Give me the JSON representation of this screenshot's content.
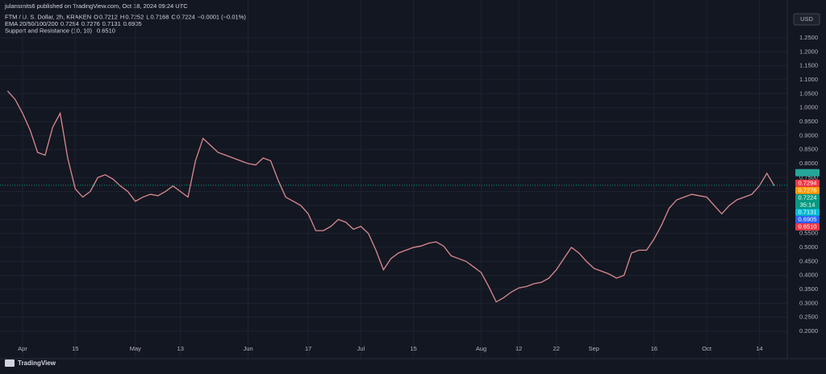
{
  "header": {
    "publisher": "julansmits6 published on TradingView.com, Oct 18, 2024 09:24 UTC",
    "symbol": "FTM / U. S. Dollar, 2h, KRAKEN",
    "ohlc": [
      [
        "O",
        "0.7212"
      ],
      [
        "H",
        "0.7252"
      ],
      [
        "L",
        "0.7168"
      ],
      [
        "C",
        "0.7224"
      ]
    ],
    "change": "−0.0001 (−0.01%)",
    "ema_label": "EMA 20/50/100/200",
    "sr_label": "Support and Resistance (10, 10)",
    "currency": "USD",
    "brand": "TradingView"
  },
  "chart_data": {
    "type": "line",
    "color": "#d98a8f",
    "categories": [
      null,
      null,
      "Apr",
      null,
      null,
      null,
      null,
      null,
      null,
      "15",
      null,
      null,
      null,
      null,
      null,
      null,
      null,
      "May",
      null,
      null,
      null,
      null,
      null,
      "13",
      null,
      null,
      null,
      null,
      null,
      null,
      null,
      null,
      "Jun",
      null,
      null,
      null,
      null,
      null,
      null,
      null,
      "17",
      null,
      null,
      null,
      null,
      null,
      null,
      "Jul",
      null,
      null,
      null,
      null,
      null,
      null,
      "15",
      null,
      null,
      null,
      null,
      null,
      null,
      null,
      null,
      "Aug",
      null,
      null,
      null,
      null,
      "12",
      null,
      null,
      null,
      null,
      "22",
      null,
      null,
      null,
      null,
      "Sep",
      null,
      null,
      null,
      null,
      null,
      null,
      null,
      "16",
      null,
      null,
      null,
      null,
      null,
      null,
      "Oct",
      null,
      null,
      null,
      null,
      null,
      null,
      "14",
      null,
      null
    ],
    "values": [
      1.06,
      1.03,
      0.98,
      0.92,
      0.84,
      0.83,
      0.93,
      0.98,
      0.82,
      0.71,
      0.68,
      0.7,
      0.75,
      0.76,
      0.745,
      0.72,
      0.7,
      0.665,
      0.68,
      0.69,
      0.685,
      0.7,
      0.72,
      0.7,
      0.68,
      0.81,
      0.89,
      0.865,
      0.84,
      0.83,
      0.82,
      0.81,
      0.8,
      0.795,
      0.82,
      0.81,
      0.74,
      0.68,
      0.665,
      0.65,
      0.62,
      0.56,
      0.56,
      0.575,
      0.6,
      0.59,
      0.565,
      0.575,
      0.55,
      0.49,
      0.42,
      0.46,
      0.48,
      0.49,
      0.5,
      0.505,
      0.515,
      0.52,
      0.505,
      0.47,
      0.46,
      0.45,
      0.43,
      0.41,
      0.36,
      0.305,
      0.32,
      0.34,
      0.355,
      0.36,
      0.37,
      0.375,
      0.39,
      0.42,
      0.46,
      0.5,
      0.48,
      0.45,
      0.425,
      0.415,
      0.405,
      0.39,
      0.4,
      0.48,
      0.49,
      0.49,
      0.53,
      0.58,
      0.64,
      0.67,
      0.68,
      0.69,
      0.685,
      0.68,
      0.65,
      0.62,
      0.65,
      0.67,
      0.68,
      0.69,
      0.72,
      0.765,
      0.72
    ],
    "ylim": [
      0.145,
      1.345
    ],
    "yticks": [
      {
        "value": 0.2,
        "label": "0.2000"
      },
      {
        "value": 0.25,
        "label": "0.2500"
      },
      {
        "value": 0.3,
        "label": "0.3000"
      },
      {
        "value": 0.35,
        "label": "0.3500"
      },
      {
        "value": 0.4,
        "label": "0.4000"
      },
      {
        "value": 0.45,
        "label": "0.4500"
      },
      {
        "value": 0.5,
        "label": "0.5000"
      },
      {
        "value": 0.55,
        "label": "0.5500"
      },
      {
        "value": 0.6,
        "label": "0.6000"
      },
      {
        "value": 0.65,
        "label": "0.6500"
      },
      {
        "value": 0.7,
        "label": "0.7000"
      },
      {
        "value": 0.75,
        "label": "0.7500"
      },
      {
        "value": 0.8,
        "label": "0.8000"
      },
      {
        "value": 0.85,
        "label": "0.8500"
      },
      {
        "value": 0.9,
        "label": "0.9000"
      },
      {
        "value": 0.95,
        "label": "0.9500"
      },
      {
        "value": 1.0,
        "label": "1.0000"
      },
      {
        "value": 1.05,
        "label": "1.0500"
      },
      {
        "value": 1.1,
        "label": "1.1000"
      },
      {
        "value": 1.15,
        "label": "1.1500"
      },
      {
        "value": 1.2,
        "label": "1.2000"
      },
      {
        "value": 1.25,
        "label": "1.2500"
      }
    ],
    "grid": true,
    "last_price": {
      "value": 0.7224,
      "color": "#089981",
      "countdown": "35:14"
    },
    "ema": [
      {
        "value": 0.7294,
        "color": "#f23645"
      },
      {
        "value": 0.7276,
        "color": "#ff9800"
      },
      {
        "value": 0.7131,
        "color": "#00bcd4"
      },
      {
        "value": 0.6905,
        "color": "#2962ff"
      }
    ],
    "support_resistance": [
      {
        "value": 0.7672,
        "color": "#26a69a"
      },
      {
        "value": 0.651,
        "label": "0.6510",
        "color": "#f23645"
      }
    ]
  }
}
